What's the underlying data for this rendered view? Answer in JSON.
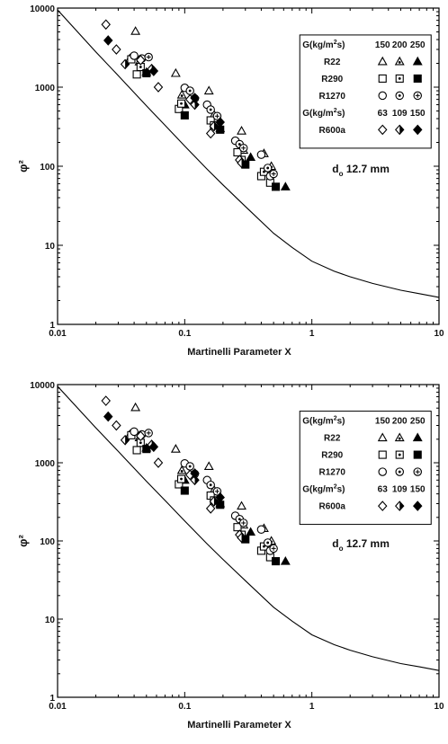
{
  "chart_data": [
    {
      "type": "scatter",
      "title": "",
      "xlabel": "Martinelli Parameter X",
      "ylabel": "φ²",
      "xscale": "log",
      "yscale": "log",
      "xlim": [
        0.01,
        10
      ],
      "ylim": [
        1,
        10000
      ],
      "x_ticks": [
        "0.01",
        "0.1",
        "1",
        "10"
      ],
      "y_ticks": [
        "1",
        "10",
        "100",
        "1000",
        "10000"
      ],
      "annotation": {
        "text": "d",
        "sub": "o",
        "rest": " 12.7 mm"
      },
      "legend": {
        "placement": "top-right",
        "header1": {
          "label": "G(kg/m",
          "sup": "2",
          "tail": "s)",
          "values": [
            "150",
            "200",
            "250"
          ]
        },
        "header2": {
          "label": "G(kg/m",
          "sup": "2",
          "tail": "s)",
          "values": [
            "63",
            "109",
            "150"
          ]
        },
        "rows": [
          {
            "name": "R22",
            "group": 1,
            "markers": [
              "triangle-open",
              "triangle-dot",
              "triangle-filled"
            ]
          },
          {
            "name": "R290",
            "group": 1,
            "markers": [
              "square-open",
              "square-dot",
              "square-filled"
            ]
          },
          {
            "name": "R1270",
            "group": 1,
            "markers": [
              "circle-open",
              "circle-dot",
              "circle-star"
            ]
          },
          {
            "name": "R600a",
            "group": 2,
            "markers": [
              "diamond-open",
              "diamond-half",
              "diamond-filled"
            ]
          }
        ]
      },
      "curve": {
        "name": "",
        "x": [
          0.01,
          0.02,
          0.03,
          0.05,
          0.07,
          0.1,
          0.15,
          0.2,
          0.3,
          0.5,
          0.7,
          1,
          1.5,
          2,
          3,
          5,
          7,
          10
        ],
        "y": [
          9500,
          2800,
          1400,
          580,
          330,
          180,
          92,
          58,
          31,
          14.2,
          9.4,
          6.3,
          4.7,
          4.0,
          3.3,
          2.7,
          2.45,
          2.2
        ]
      },
      "series": [
        {
          "name": "R22 G=150",
          "marker": "triangle-open",
          "points": [
            [
              0.037,
              2300
            ],
            [
              0.041,
              5100
            ],
            [
              0.085,
              1500
            ],
            [
              0.155,
              900
            ],
            [
              0.28,
              280
            ],
            [
              0.42,
              145
            ]
          ]
        },
        {
          "name": "R22 G=200",
          "marker": "triangle-dot",
          "points": [
            [
              0.044,
              2100
            ],
            [
              0.095,
              800
            ],
            [
              0.17,
              450
            ],
            [
              0.29,
              160
            ],
            [
              0.48,
              100
            ]
          ]
        },
        {
          "name": "R22 G=250",
          "marker": "triangle-filled",
          "points": [
            [
              0.05,
              1550
            ],
            [
              0.1,
              600
            ],
            [
              0.19,
              300
            ],
            [
              0.33,
              130
            ],
            [
              0.62,
              55
            ]
          ]
        },
        {
          "name": "R290 G=150",
          "marker": "square-open",
          "points": [
            [
              0.038,
              2250
            ],
            [
              0.042,
              1450
            ],
            [
              0.09,
              530
            ],
            [
              0.16,
              380
            ],
            [
              0.26,
              150
            ],
            [
              0.4,
              75
            ],
            [
              0.47,
              62
            ]
          ]
        },
        {
          "name": "R290 G=200",
          "marker": "square-dot",
          "points": [
            [
              0.045,
              1800
            ],
            [
              0.094,
              620
            ],
            [
              0.17,
              330
            ],
            [
              0.28,
              120
            ],
            [
              0.42,
              85
            ]
          ]
        },
        {
          "name": "R290 G=250",
          "marker": "square-filled",
          "points": [
            [
              0.05,
              1500
            ],
            [
              0.1,
              440
            ],
            [
              0.19,
              290
            ],
            [
              0.3,
              105
            ],
            [
              0.52,
              55
            ]
          ]
        },
        {
          "name": "R1270 G=150",
          "marker": "circle-open",
          "points": [
            [
              0.04,
              2500
            ],
            [
              0.1,
              980
            ],
            [
              0.15,
              600
            ],
            [
              0.25,
              210
            ],
            [
              0.4,
              140
            ],
            [
              0.47,
              75
            ]
          ]
        },
        {
          "name": "R1270 G=200",
          "marker": "circle-dot",
          "points": [
            [
              0.046,
              2300
            ],
            [
              0.11,
              900
            ],
            [
              0.16,
              520
            ],
            [
              0.27,
              190
            ],
            [
              0.45,
              95
            ]
          ]
        },
        {
          "name": "R1270 G=250",
          "marker": "circle-star",
          "points": [
            [
              0.052,
              2400
            ],
            [
              0.12,
              720
            ],
            [
              0.18,
              430
            ],
            [
              0.29,
              170
            ],
            [
              0.5,
              80
            ]
          ]
        },
        {
          "name": "R600a G=63",
          "marker": "diamond-open",
          "points": [
            [
              0.024,
              6200
            ],
            [
              0.029,
              3000
            ],
            [
              0.045,
              2200
            ],
            [
              0.062,
              1000
            ],
            [
              0.11,
              700
            ],
            [
              0.16,
              260
            ],
            [
              0.27,
              120
            ]
          ]
        },
        {
          "name": "R600a G=109",
          "marker": "diamond-half",
          "points": [
            [
              0.034,
              1950
            ],
            [
              0.055,
              1700
            ],
            [
              0.12,
              600
            ],
            [
              0.17,
              320
            ],
            [
              0.28,
              110
            ]
          ]
        },
        {
          "name": "R600a G=150",
          "marker": "diamond-filled",
          "points": [
            [
              0.025,
              3900
            ],
            [
              0.057,
              1600
            ],
            [
              0.12,
              730
            ],
            [
              0.19,
              360
            ]
          ]
        }
      ]
    },
    {
      "type": "scatter",
      "title": "",
      "xlabel": "Martinelli Parameter X",
      "ylabel": "φ²",
      "xscale": "log",
      "yscale": "log",
      "xlim": [
        0.01,
        10
      ],
      "ylim": [
        1,
        10000
      ],
      "x_ticks": [
        "0.01",
        "0.1",
        "1",
        "10"
      ],
      "y_ticks": [
        "1",
        "10",
        "100",
        "1000",
        "10000"
      ],
      "annotation": {
        "text": "d",
        "sub": "o",
        "rest": " 12.7 mm"
      },
      "legend": {
        "placement": "top-right",
        "header1": {
          "label": "G(kg/m",
          "sup": "2",
          "tail": "s)",
          "values": [
            "150",
            "200",
            "250"
          ]
        },
        "header2": {
          "label": "G(kg/m",
          "sup": "2",
          "tail": "s)",
          "values": [
            "63",
            "109",
            "150"
          ]
        },
        "rows": [
          {
            "name": "R22",
            "group": 1,
            "markers": [
              "triangle-open",
              "triangle-dot",
              "triangle-filled"
            ]
          },
          {
            "name": "R290",
            "group": 1,
            "markers": [
              "square-open",
              "square-dot",
              "square-filled"
            ]
          },
          {
            "name": "R1270",
            "group": 1,
            "markers": [
              "circle-open",
              "circle-dot",
              "circle-star"
            ]
          },
          {
            "name": "R600a",
            "group": 2,
            "markers": [
              "diamond-open",
              "diamond-half",
              "diamond-filled"
            ]
          }
        ]
      },
      "curve": {
        "name": "",
        "x": [
          0.01,
          0.02,
          0.03,
          0.05,
          0.07,
          0.1,
          0.15,
          0.2,
          0.3,
          0.5,
          0.7,
          1,
          1.5,
          2,
          3,
          5,
          7,
          10
        ],
        "y": [
          9500,
          2800,
          1400,
          580,
          330,
          180,
          92,
          58,
          31,
          14.2,
          9.4,
          6.3,
          4.7,
          4.0,
          3.3,
          2.7,
          2.45,
          2.2
        ]
      },
      "series": [
        {
          "name": "R22 G=150",
          "marker": "triangle-open",
          "points": [
            [
              0.037,
              2300
            ],
            [
              0.041,
              5100
            ],
            [
              0.085,
              1500
            ],
            [
              0.155,
              900
            ],
            [
              0.28,
              280
            ],
            [
              0.42,
              145
            ]
          ]
        },
        {
          "name": "R22 G=200",
          "marker": "triangle-dot",
          "points": [
            [
              0.044,
              2100
            ],
            [
              0.095,
              800
            ],
            [
              0.17,
              450
            ],
            [
              0.29,
              160
            ],
            [
              0.48,
              100
            ]
          ]
        },
        {
          "name": "R22 G=250",
          "marker": "triangle-filled",
          "points": [
            [
              0.05,
              1550
            ],
            [
              0.1,
              600
            ],
            [
              0.19,
              300
            ],
            [
              0.33,
              130
            ],
            [
              0.62,
              55
            ]
          ]
        },
        {
          "name": "R290 G=150",
          "marker": "square-open",
          "points": [
            [
              0.038,
              2250
            ],
            [
              0.042,
              1450
            ],
            [
              0.09,
              530
            ],
            [
              0.16,
              380
            ],
            [
              0.26,
              150
            ],
            [
              0.4,
              75
            ],
            [
              0.47,
              62
            ]
          ]
        },
        {
          "name": "R290 G=200",
          "marker": "square-dot",
          "points": [
            [
              0.045,
              1800
            ],
            [
              0.094,
              620
            ],
            [
              0.17,
              330
            ],
            [
              0.28,
              120
            ],
            [
              0.42,
              85
            ]
          ]
        },
        {
          "name": "R290 G=250",
          "marker": "square-filled",
          "points": [
            [
              0.05,
              1500
            ],
            [
              0.1,
              440
            ],
            [
              0.19,
              290
            ],
            [
              0.3,
              105
            ],
            [
              0.52,
              55
            ]
          ]
        },
        {
          "name": "R1270 G=150",
          "marker": "circle-open",
          "points": [
            [
              0.04,
              2500
            ],
            [
              0.1,
              980
            ],
            [
              0.15,
              600
            ],
            [
              0.25,
              210
            ],
            [
              0.4,
              140
            ],
            [
              0.47,
              75
            ]
          ]
        },
        {
          "name": "R1270 G=200",
          "marker": "circle-dot",
          "points": [
            [
              0.046,
              2300
            ],
            [
              0.11,
              900
            ],
            [
              0.16,
              520
            ],
            [
              0.27,
              190
            ],
            [
              0.45,
              95
            ]
          ]
        },
        {
          "name": "R1270 G=250",
          "marker": "circle-star",
          "points": [
            [
              0.052,
              2400
            ],
            [
              0.12,
              720
            ],
            [
              0.18,
              430
            ],
            [
              0.29,
              170
            ],
            [
              0.5,
              80
            ]
          ]
        },
        {
          "name": "R600a G=63",
          "marker": "diamond-open",
          "points": [
            [
              0.024,
              6200
            ],
            [
              0.029,
              3000
            ],
            [
              0.045,
              2200
            ],
            [
              0.062,
              1000
            ],
            [
              0.11,
              700
            ],
            [
              0.16,
              260
            ],
            [
              0.27,
              120
            ]
          ]
        },
        {
          "name": "R600a G=109",
          "marker": "diamond-half",
          "points": [
            [
              0.034,
              1950
            ],
            [
              0.055,
              1700
            ],
            [
              0.12,
              600
            ],
            [
              0.17,
              320
            ],
            [
              0.28,
              110
            ]
          ]
        },
        {
          "name": "R600a G=150",
          "marker": "diamond-filled",
          "points": [
            [
              0.025,
              3900
            ],
            [
              0.057,
              1600
            ],
            [
              0.12,
              730
            ],
            [
              0.19,
              360
            ]
          ]
        }
      ]
    }
  ]
}
